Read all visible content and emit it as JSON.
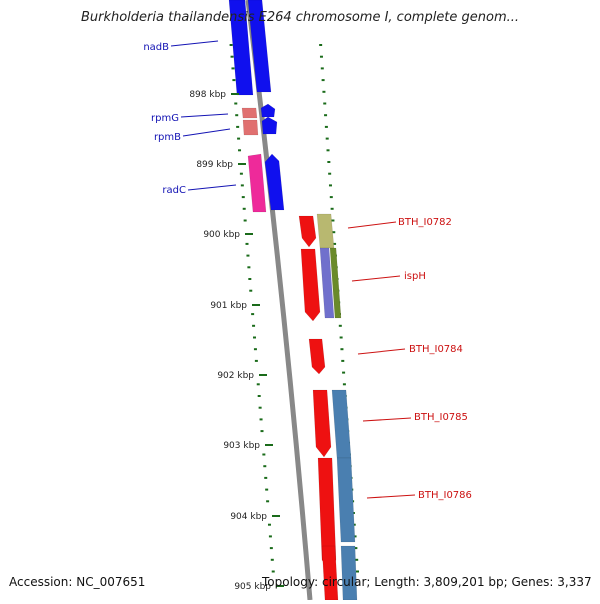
{
  "title": "Burkholderia thailandensis E264 chromosome I, complete genom...",
  "footer": {
    "accession": "Accession: NC_007651",
    "topology": "Topology: circular; Length: 3,809,201 bp; Genes: 3,337"
  },
  "ruler": {
    "ticks": [
      {
        "label": "898 kbp"
      },
      {
        "label": "899 kbp"
      },
      {
        "label": "900 kbp"
      },
      {
        "label": "901 kbp"
      },
      {
        "label": "902 kbp"
      },
      {
        "label": "903 kbp"
      },
      {
        "label": "904 kbp"
      },
      {
        "label": "905 kbp"
      }
    ]
  },
  "genes": [
    {
      "label": "nadB",
      "color": "#1414b4"
    },
    {
      "label": "rpmG",
      "color": "#1414b4"
    },
    {
      "label": "rpmB",
      "color": "#1414b4"
    },
    {
      "label": "radC",
      "color": "#1414b4"
    },
    {
      "label": "BTH_I0782",
      "color": "#cc1111"
    },
    {
      "label": "ispH",
      "color": "#cc1111"
    },
    {
      "label": "BTH_I0784",
      "color": "#cc1111"
    },
    {
      "label": "BTH_I0785",
      "color": "#cc1111"
    },
    {
      "label": "BTH_I0786",
      "color": "#cc1111"
    }
  ],
  "colors": {
    "backbone": "#888888",
    "tick": "#1a6b1a",
    "forward_gene": "#1010ee",
    "reverse_gene": "#ee1111",
    "rna": "#e07070",
    "radC_partner": "#ee2a9a",
    "cog_olive": "#b8b870",
    "cog_purple": "#7070cc",
    "cog_green": "#6a8a2a",
    "cog_steel": "#4a7fb0"
  }
}
